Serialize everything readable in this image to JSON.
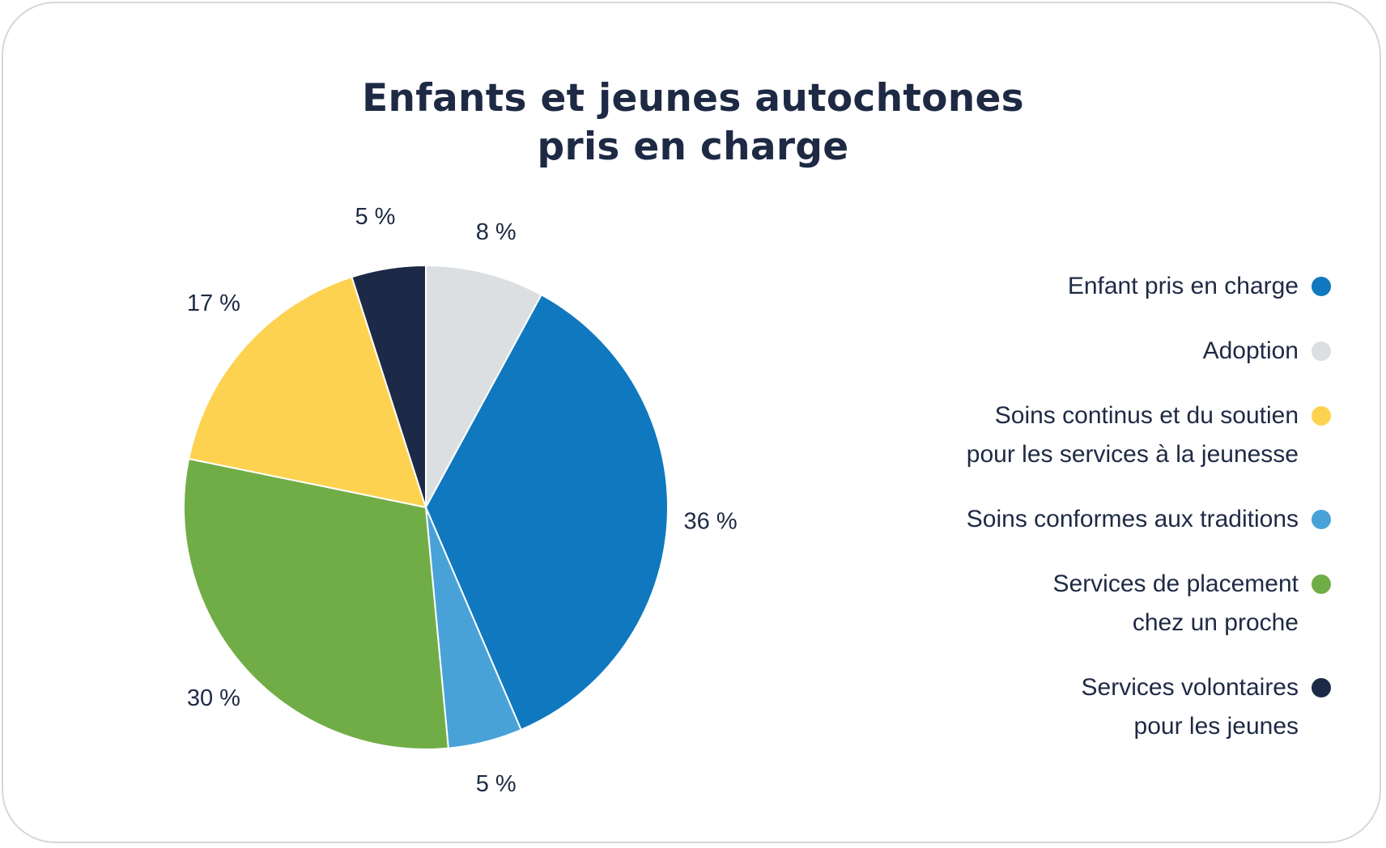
{
  "chart_data": {
    "type": "pie",
    "title": [
      "Enfants et jeunes autochtones",
      "pris en charge"
    ],
    "slices": [
      {
        "name": "Adoption",
        "value": 8,
        "label": "8 %",
        "color": "#dcdfe2"
      },
      {
        "name": "Enfant pris en charge",
        "value": 36,
        "label": "36 %",
        "color": "#1078be"
      },
      {
        "name": "Soins conformes aux traditions",
        "value": 5,
        "label": "5 %",
        "color": "#48a2d8"
      },
      {
        "name": "Services de placement chez un proche",
        "value": 30,
        "label": "30 %",
        "color": "#71ad47"
      },
      {
        "name": "Soins continus et du soutien pour les services à la jeunesse",
        "value": 17,
        "label": "17 %",
        "color": "#fed251"
      },
      {
        "name": "Services volontaires pour les jeunes",
        "value": 5,
        "label": "5 %",
        "color": "#1d2a47"
      }
    ],
    "legend": [
      {
        "lines": [
          "Enfant pris en charge"
        ],
        "color": "#1078be"
      },
      {
        "lines": [
          "Adoption"
        ],
        "color": "#dcdfe2"
      },
      {
        "lines": [
          "Soins continus et du soutien",
          "pour les services à la jeunesse"
        ],
        "color": "#fed251"
      },
      {
        "lines": [
          "Soins conformes aux traditions"
        ],
        "color": "#48a2d8"
      },
      {
        "lines": [
          "Services de placement",
          "chez un proche"
        ],
        "color": "#71ad47"
      },
      {
        "lines": [
          "Services volontaires",
          "pour les jeunes"
        ],
        "color": "#1d2a47"
      }
    ],
    "legend_position": "right"
  }
}
